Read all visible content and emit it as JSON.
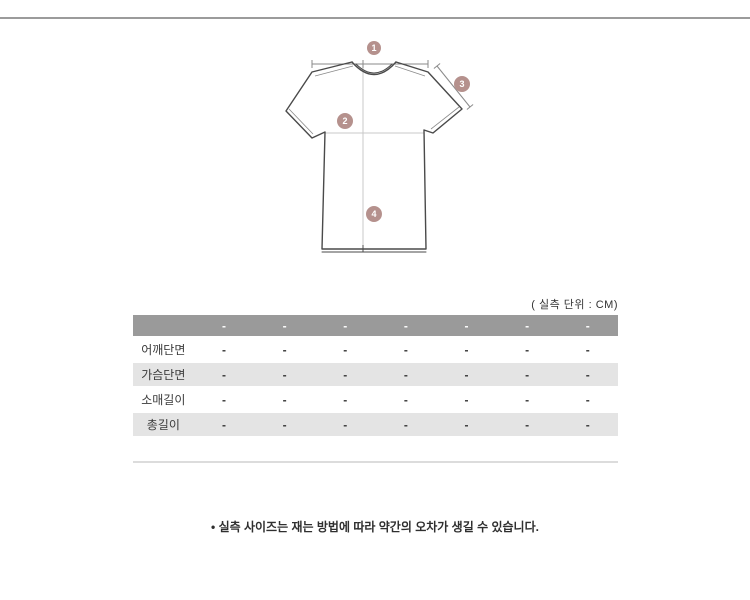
{
  "page": {
    "unit_label": "( 실측 단위 : CM)",
    "note": "• 실측 사이즈는 재는 방법에 따라 약간의 오차가 생길 수 있습니다."
  },
  "diagram": {
    "marker_color": "#b5918d",
    "markers": [
      {
        "num": "1",
        "meaning": "shoulder-width"
      },
      {
        "num": "2",
        "meaning": "chest-width"
      },
      {
        "num": "3",
        "meaning": "sleeve-length"
      },
      {
        "num": "4",
        "meaning": "total-length"
      }
    ]
  },
  "size_table": {
    "header": [
      "",
      "-",
      "-",
      "-",
      "-",
      "-",
      "-",
      "-"
    ],
    "rows": [
      {
        "label": "어깨단면",
        "values": [
          "-",
          "-",
          "-",
          "-",
          "-",
          "-",
          "-"
        ]
      },
      {
        "label": "가슴단면",
        "values": [
          "-",
          "-",
          "-",
          "-",
          "-",
          "-",
          "-"
        ]
      },
      {
        "label": "소매길이",
        "values": [
          "-",
          "-",
          "-",
          "-",
          "-",
          "-",
          "-"
        ]
      },
      {
        "label": "총길이",
        "values": [
          "-",
          "-",
          "-",
          "-",
          "-",
          "-",
          "-"
        ]
      }
    ],
    "colors": {
      "header_bg": "#9a9a9a",
      "stripe_bg": "#e4e4e4"
    }
  }
}
